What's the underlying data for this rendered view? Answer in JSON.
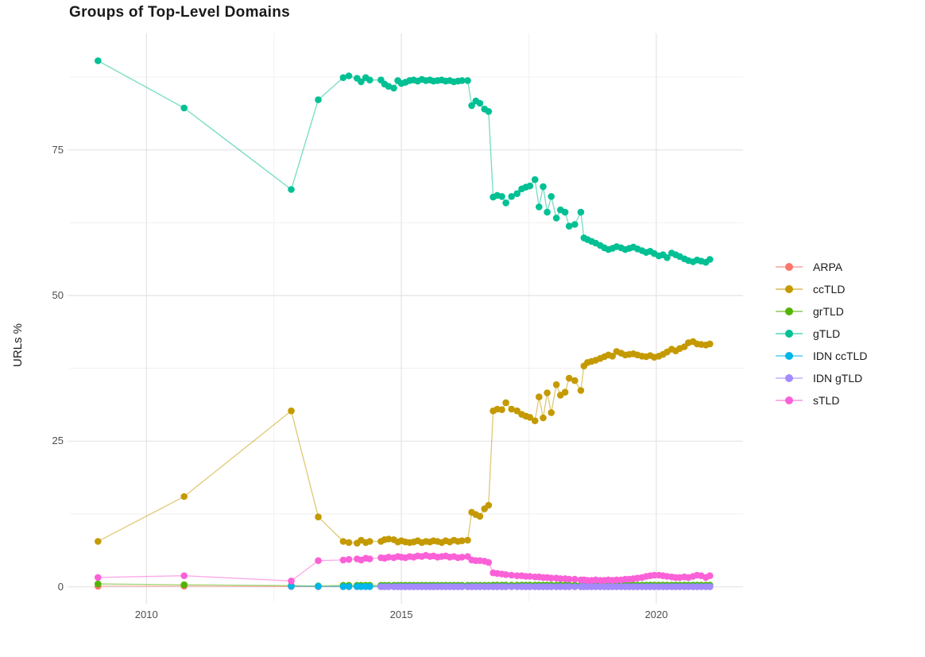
{
  "title": "Groups of Top-Level Domains",
  "y_axis": {
    "label": "URLs %",
    "tick_labels": [
      "0",
      "25",
      "50",
      "75"
    ]
  },
  "x_axis": {
    "tick_labels": [
      "2010",
      "2015",
      "2020"
    ]
  },
  "colors": {
    "background": "#ffffff",
    "grid_major": "#e4e4e4",
    "grid_minor": "#f1f1f1",
    "tick_text": "#4d4d4d",
    "title_text": "#1a1a1a"
  },
  "chart_data": {
    "type": "line",
    "title": "Groups of Top-Level Domains",
    "xlabel": "",
    "ylabel": "URLs %",
    "xlim": [
      2008.5,
      2021.7
    ],
    "ylim": [
      -2.5,
      95
    ],
    "x_major": [
      2010,
      2015,
      2020
    ],
    "x_minor": [
      2012.5,
      2017.5
    ],
    "y_major": [
      0,
      25,
      50,
      75
    ],
    "y_minor": [
      12.5,
      37.5,
      62.5,
      87.5
    ],
    "grid": true,
    "legend_position": "right-center",
    "x": [
      2009.05,
      2010.74,
      2012.84,
      2013.37,
      2013.86,
      2013.97,
      2014.13,
      2014.21,
      2014.3,
      2014.38,
      2014.6,
      2014.67,
      2014.75,
      2014.85,
      2014.93,
      2015.0,
      2015.08,
      2015.16,
      2015.24,
      2015.32,
      2015.4,
      2015.48,
      2015.56,
      2015.63,
      2015.71,
      2015.79,
      2015.87,
      2015.95,
      2016.03,
      2016.11,
      2016.19,
      2016.3,
      2016.38,
      2016.46,
      2016.54,
      2016.63,
      2016.71,
      2016.8,
      2016.88,
      2016.97,
      2017.05,
      2017.16,
      2017.27,
      2017.36,
      2017.44,
      2017.52,
      2017.62,
      2017.7,
      2017.78,
      2017.86,
      2017.94,
      2018.04,
      2018.12,
      2018.21,
      2018.29,
      2018.4,
      2018.52,
      2018.58,
      2018.65,
      2018.73,
      2018.81,
      2018.9,
      2018.98,
      2019.06,
      2019.14,
      2019.22,
      2019.31,
      2019.39,
      2019.47,
      2019.55,
      2019.63,
      2019.72,
      2019.8,
      2019.88,
      2019.96,
      2020.05,
      2020.13,
      2020.21,
      2020.3,
      2020.38,
      2020.46,
      2020.55,
      2020.63,
      2020.72,
      2020.8,
      2020.88,
      2020.97,
      2021.05
    ],
    "series": [
      {
        "name": "ARPA",
        "color": "#F8766D",
        "values": [
          0.1,
          0.12,
          0.05,
          0.03,
          0.02,
          0.02,
          0.02,
          0.02,
          0.02,
          0.02,
          0.02,
          0.02,
          0.02,
          0.02,
          0.02,
          0.02,
          0.02,
          0.02,
          0.02,
          0.02,
          0.02,
          0.02,
          0.02,
          0.02,
          0.02,
          0.02,
          0.02,
          0.02,
          0.02,
          0.02,
          0.02,
          0.02,
          0.02,
          0.02,
          0.02,
          0.02,
          0.02,
          0.02,
          0.02,
          0.02,
          0.02,
          0.02,
          0.02,
          0.02,
          0.02,
          0.02,
          0.02,
          0.02,
          0.02,
          0.02,
          0.02,
          0.02,
          0.02,
          0.02,
          0.02,
          0.02,
          0.02,
          0.02,
          0.02,
          0.02,
          0.02,
          0.02,
          0.02,
          0.02,
          0.02,
          0.02,
          0.02,
          0.02,
          0.02,
          0.02,
          0.02,
          0.02,
          0.02,
          0.02,
          0.02,
          0.02,
          0.02,
          0.02,
          0.02,
          0.02,
          0.02,
          0.02,
          0.02,
          0.02,
          0.02,
          0.02,
          0.02,
          0.02
        ]
      },
      {
        "name": "ccTLD",
        "color": "#C49A00",
        "values": [
          7.8,
          15.5,
          30.2,
          12.0,
          7.8,
          7.6,
          7.5,
          8.0,
          7.6,
          7.8,
          7.8,
          8.1,
          8.2,
          8.1,
          7.7,
          7.9,
          7.7,
          7.6,
          7.7,
          7.9,
          7.6,
          7.8,
          7.7,
          7.9,
          7.8,
          7.6,
          7.9,
          7.7,
          8.0,
          7.8,
          7.9,
          8.0,
          12.8,
          12.4,
          12.1,
          13.4,
          14.0,
          30.2,
          30.5,
          30.4,
          31.6,
          30.5,
          30.2,
          29.6,
          29.3,
          29.1,
          28.5,
          32.6,
          29.0,
          33.3,
          29.9,
          34.7,
          32.9,
          33.4,
          35.8,
          35.4,
          33.7,
          37.9,
          38.5,
          38.7,
          38.9,
          39.2,
          39.5,
          39.8,
          39.6,
          40.4,
          40.1,
          39.8,
          39.9,
          40.0,
          39.8,
          39.6,
          39.5,
          39.7,
          39.4,
          39.6,
          39.9,
          40.3,
          40.8,
          40.5,
          40.9,
          41.2,
          41.9,
          42.1,
          41.7,
          41.6,
          41.5,
          41.7
        ]
      },
      {
        "name": "grTLD",
        "color": "#53B400",
        "values": [
          0.5,
          0.35,
          0.2,
          0.15,
          0.25,
          0.25,
          0.25,
          0.25,
          0.25,
          0.25,
          0.25,
          0.25,
          0.25,
          0.25,
          0.25,
          0.25,
          0.25,
          0.25,
          0.25,
          0.25,
          0.25,
          0.25,
          0.25,
          0.25,
          0.25,
          0.25,
          0.25,
          0.25,
          0.25,
          0.25,
          0.25,
          0.25,
          0.25,
          0.25,
          0.25,
          0.25,
          0.25,
          0.3,
          0.3,
          0.3,
          0.3,
          0.3,
          0.3,
          0.3,
          0.3,
          0.3,
          0.3,
          0.3,
          0.3,
          0.3,
          0.3,
          0.3,
          0.3,
          0.3,
          0.3,
          0.3,
          0.3,
          0.3,
          0.3,
          0.3,
          0.3,
          0.3,
          0.3,
          0.3,
          0.3,
          0.3,
          0.3,
          0.3,
          0.3,
          0.3,
          0.3,
          0.3,
          0.3,
          0.3,
          0.3,
          0.3,
          0.3,
          0.3,
          0.3,
          0.3,
          0.3,
          0.3,
          0.3,
          0.3,
          0.3,
          0.3,
          0.3,
          0.3
        ]
      },
      {
        "name": "gTLD",
        "color": "#00C094",
        "values": [
          90.3,
          82.2,
          68.2,
          83.6,
          87.4,
          87.7,
          87.3,
          86.7,
          87.4,
          87.0,
          87.0,
          86.3,
          85.9,
          85.6,
          86.9,
          86.4,
          86.6,
          86.9,
          87.0,
          86.8,
          87.1,
          86.9,
          87.0,
          86.8,
          86.9,
          87.0,
          86.8,
          86.9,
          86.7,
          86.8,
          86.9,
          86.9,
          82.6,
          83.4,
          83.0,
          82.0,
          81.6,
          66.9,
          67.2,
          67.0,
          65.9,
          67.0,
          67.5,
          68.3,
          68.6,
          68.8,
          69.9,
          65.2,
          68.7,
          64.3,
          67.0,
          63.3,
          64.7,
          64.3,
          61.9,
          62.2,
          64.3,
          59.9,
          59.6,
          59.3,
          59.0,
          58.6,
          58.2,
          57.9,
          58.1,
          58.4,
          58.2,
          57.9,
          58.1,
          58.3,
          58.0,
          57.7,
          57.4,
          57.6,
          57.2,
          56.8,
          57.0,
          56.5,
          57.3,
          57.0,
          56.7,
          56.3,
          56.0,
          55.8,
          56.1,
          55.9,
          55.7,
          56.2
        ]
      },
      {
        "name": "IDN ccTLD",
        "color": "#00B6EB",
        "values": [
          null,
          null,
          0.1,
          0.08,
          0.05,
          0.05,
          0.05,
          0.05,
          0.05,
          0.05,
          0.05,
          0.05,
          0.05,
          0.05,
          0.05,
          0.05,
          0.05,
          0.05,
          0.05,
          0.05,
          0.05,
          0.05,
          0.05,
          0.05,
          0.05,
          0.05,
          0.05,
          0.05,
          0.05,
          0.05,
          0.05,
          0.05,
          0.05,
          0.05,
          0.05,
          0.05,
          0.05,
          0.05,
          0.05,
          0.05,
          0.05,
          0.05,
          0.05,
          0.05,
          0.05,
          0.05,
          0.05,
          0.05,
          0.05,
          0.05,
          0.05,
          0.05,
          0.05,
          0.05,
          0.05,
          0.05,
          0.05,
          0.05,
          0.05,
          0.05,
          0.05,
          0.05,
          0.05,
          0.05,
          0.05,
          0.05,
          0.05,
          0.05,
          0.05,
          0.05,
          0.05,
          0.05,
          0.05,
          0.05,
          0.05,
          0.05,
          0.05,
          0.05,
          0.05,
          0.05,
          0.05,
          0.05,
          0.05,
          0.05,
          0.05,
          0.05,
          0.05,
          0.05
        ]
      },
      {
        "name": "IDN gTLD",
        "color": "#A58AFF",
        "values": [
          null,
          null,
          null,
          null,
          null,
          null,
          null,
          null,
          null,
          null,
          0.02,
          0.02,
          0.02,
          0.02,
          0.02,
          0.02,
          0.02,
          0.02,
          0.02,
          0.02,
          0.02,
          0.02,
          0.02,
          0.02,
          0.02,
          0.02,
          0.02,
          0.02,
          0.02,
          0.02,
          0.02,
          0.02,
          0.02,
          0.02,
          0.02,
          0.02,
          0.02,
          0.02,
          0.02,
          0.02,
          0.02,
          0.02,
          0.02,
          0.02,
          0.02,
          0.02,
          0.02,
          0.02,
          0.02,
          0.02,
          0.02,
          0.02,
          0.02,
          0.02,
          0.02,
          0.02,
          0.02,
          0.02,
          0.02,
          0.02,
          0.02,
          0.02,
          0.02,
          0.02,
          0.02,
          0.02,
          0.02,
          0.02,
          0.02,
          0.02,
          0.02,
          0.02,
          0.02,
          0.02,
          0.02,
          0.02,
          0.02,
          0.02,
          0.02,
          0.02,
          0.02,
          0.02,
          0.02,
          0.02,
          0.02,
          0.02,
          0.02,
          0.02
        ]
      },
      {
        "name": "sTLD",
        "color": "#FB61D7",
        "values": [
          1.6,
          1.9,
          1.0,
          4.5,
          4.6,
          4.7,
          4.8,
          4.6,
          4.9,
          4.8,
          5.0,
          4.9,
          5.1,
          5.0,
          5.2,
          5.1,
          5.0,
          5.2,
          5.1,
          5.3,
          5.2,
          5.4,
          5.2,
          5.3,
          5.1,
          5.2,
          5.3,
          5.1,
          5.2,
          5.0,
          5.1,
          5.2,
          4.6,
          4.5,
          4.5,
          4.4,
          4.2,
          2.4,
          2.3,
          2.2,
          2.1,
          2.0,
          1.9,
          1.9,
          1.8,
          1.8,
          1.7,
          1.7,
          1.6,
          1.6,
          1.5,
          1.5,
          1.4,
          1.4,
          1.3,
          1.3,
          1.2,
          1.2,
          1.1,
          1.1,
          1.2,
          1.1,
          1.1,
          1.2,
          1.1,
          1.2,
          1.2,
          1.3,
          1.3,
          1.4,
          1.5,
          1.6,
          1.8,
          1.9,
          2.0,
          2.0,
          1.9,
          1.8,
          1.7,
          1.6,
          1.6,
          1.7,
          1.6,
          1.8,
          2.0,
          1.9,
          1.6,
          1.9
        ]
      }
    ]
  }
}
